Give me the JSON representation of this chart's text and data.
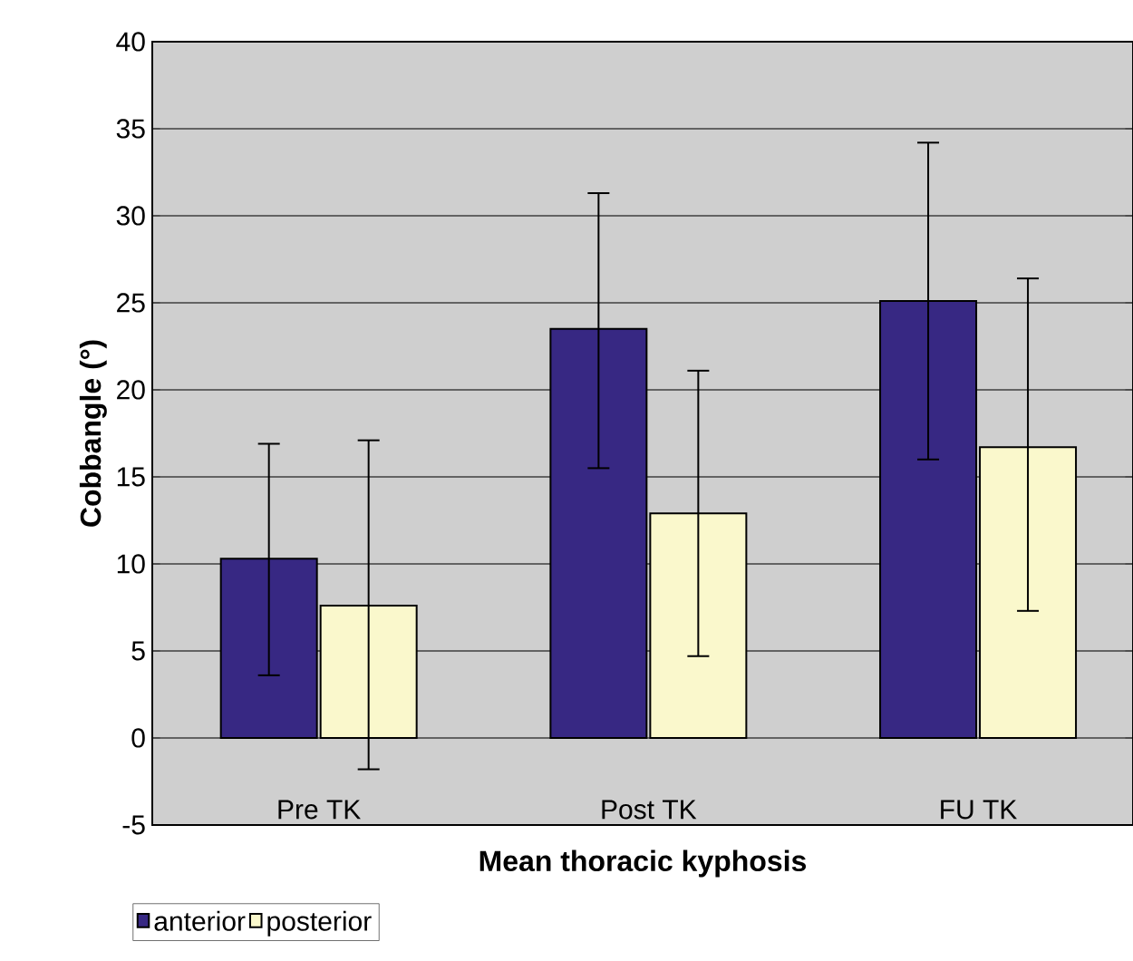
{
  "chart_data": {
    "type": "bar",
    "xlabel": "Mean thoracic kyphosis",
    "ylabel": "Cobbangle (°)",
    "categories": [
      "Pre TK",
      "Post TK",
      "FU  TK"
    ],
    "series": [
      {
        "name": "anterior",
        "color": "#372883",
        "values": [
          10.3,
          23.5,
          25.1
        ],
        "errors": [
          [
            3.6,
            16.9
          ],
          [
            15.5,
            31.3
          ],
          [
            16.0,
            34.2
          ]
        ]
      },
      {
        "name": "posterior",
        "color": "#faf8cc",
        "values": [
          7.6,
          12.9,
          16.7
        ],
        "errors": [
          [
            -1.8,
            17.1
          ],
          [
            4.7,
            21.1
          ],
          [
            7.3,
            26.4
          ]
        ]
      }
    ],
    "ylim": [
      -5,
      40
    ],
    "yticks": [
      -5,
      0,
      5,
      10,
      15,
      20,
      25,
      30,
      35,
      40
    ],
    "grid": "y",
    "legend": "bottom left"
  }
}
